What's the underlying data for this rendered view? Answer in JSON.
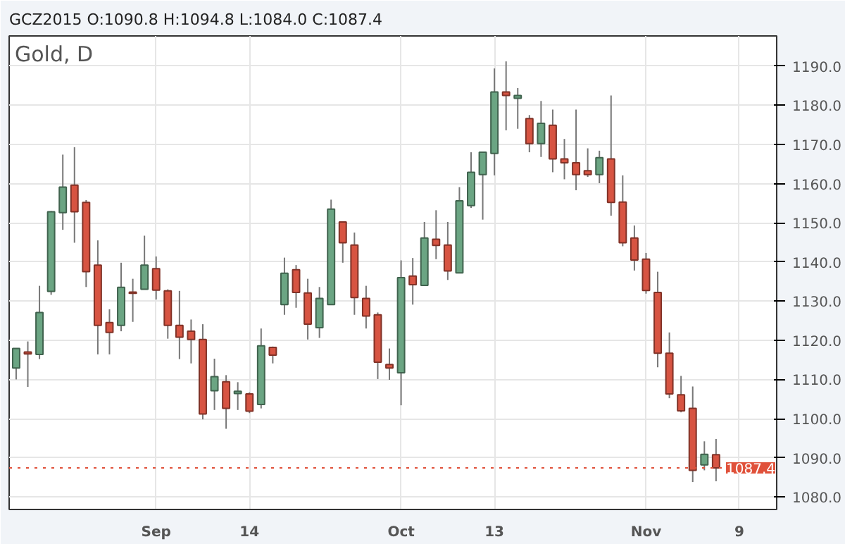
{
  "chart_data": {
    "type": "candlestick",
    "title": "GCZ2015 O:1090.8 H:1094.8 L:1084.0 C:1087.4",
    "subtitle": "Gold, D",
    "categories": [
      null,
      null,
      null,
      null,
      null,
      null,
      null,
      null,
      null,
      null,
      null,
      null,
      "Sep",
      null,
      null,
      null,
      null,
      null,
      null,
      null,
      "14",
      null,
      null,
      null,
      null,
      null,
      null,
      null,
      null,
      null,
      null,
      null,
      null,
      "Oct",
      null,
      null,
      null,
      null,
      null,
      null,
      null,
      "13",
      null,
      null,
      null,
      null,
      null,
      null,
      null,
      null,
      null,
      null,
      null,
      null,
      "Nov",
      null,
      null,
      null,
      null,
      null,
      null,
      null,
      "9",
      null,
      null
    ],
    "ohlc": [
      [
        1112.9,
        1117.9,
        1110,
        1117.9
      ],
      [
        1117,
        1119.7,
        1108.1,
        1116.5
      ],
      [
        1116.4,
        1133.9,
        1115.2,
        1127.1
      ],
      [
        1132.5,
        1153,
        1131.6,
        1152.8
      ],
      [
        1152.6,
        1167.4,
        1148.2,
        1159.1
      ],
      [
        1159.6,
        1169.3,
        1144.9,
        1152.8
      ],
      [
        1155.2,
        1155.8,
        1133.6,
        1137.5
      ],
      [
        1139.2,
        1145.5,
        1116.4,
        1123.8
      ],
      [
        1124.5,
        1127.9,
        1116.4,
        1122
      ],
      [
        1123.8,
        1139.8,
        1122.3,
        1133.5
      ],
      [
        1132.3,
        1135.7,
        1124.7,
        1132
      ],
      [
        1133,
        1146.7,
        1133,
        1139.2
      ],
      [
        1138.3,
        1141.4,
        1130.4,
        1132.8
      ],
      [
        1132.6,
        1133,
        1120.4,
        1123.8
      ],
      [
        1123.8,
        1132.6,
        1115.2,
        1120.8
      ],
      [
        1122.3,
        1125.3,
        1114.1,
        1120.2
      ],
      [
        1120.2,
        1124.1,
        1099.8,
        1101.2
      ],
      [
        1107.1,
        1115.3,
        1102.2,
        1110.7
      ],
      [
        1109.4,
        1111.1,
        1097.4,
        1102.6
      ],
      [
        1106.4,
        1109.3,
        1102.2,
        1107
      ],
      [
        1106.3,
        1106.7,
        1101.4,
        1101.9
      ],
      [
        1103.6,
        1123,
        1102.6,
        1118.6
      ],
      [
        1118.2,
        1118.4,
        1114.1,
        1116.2
      ],
      [
        1129.1,
        1141.1,
        1126.5,
        1137.1
      ],
      [
        1138,
        1139.2,
        1128.3,
        1132.2
      ],
      [
        1132.1,
        1135.7,
        1120.2,
        1124.1
      ],
      [
        1123.2,
        1133.6,
        1120.6,
        1130.7
      ],
      [
        1129.1,
        1155.9,
        1129.1,
        1153.5
      ],
      [
        1150.2,
        1150.2,
        1139.8,
        1144.9
      ],
      [
        1144.3,
        1147.5,
        1126.5,
        1130.9
      ],
      [
        1130.7,
        1133.9,
        1123,
        1126.2
      ],
      [
        1126.5,
        1127.1,
        1110.1,
        1114.4
      ],
      [
        1113.8,
        1117.9,
        1109.9,
        1112.9
      ],
      [
        1111.7,
        1140.4,
        1103.4,
        1136
      ],
      [
        1136.4,
        1141,
        1129.1,
        1134.2
      ],
      [
        1134,
        1150.2,
        1134,
        1146.1
      ],
      [
        1145.8,
        1153.2,
        1140.7,
        1144.2
      ],
      [
        1144.3,
        1150.2,
        1135.4,
        1137.7
      ],
      [
        1137.2,
        1159.1,
        1137.2,
        1155.6
      ],
      [
        1154.4,
        1168,
        1153.8,
        1162.9
      ],
      [
        1162.3,
        1168,
        1150.8,
        1168
      ],
      [
        1167.7,
        1189.4,
        1162.1,
        1183.4
      ],
      [
        1183.4,
        1191.2,
        1173.6,
        1182.5
      ],
      [
        1181.8,
        1184.4,
        1174,
        1182.5
      ],
      [
        1176.6,
        1177.5,
        1168,
        1170.2
      ],
      [
        1170.2,
        1181.1,
        1166.8,
        1175.4
      ],
      [
        1174.9,
        1178.9,
        1162.9,
        1166.3
      ],
      [
        1166.3,
        1171.4,
        1161.1,
        1165.3
      ],
      [
        1165.3,
        1178.9,
        1158.3,
        1162.3
      ],
      [
        1163.3,
        1169,
        1161.7,
        1162.3
      ],
      [
        1162.3,
        1168.4,
        1160.1,
        1166.6
      ],
      [
        1166.3,
        1182.5,
        1151.8,
        1155.2
      ],
      [
        1155.3,
        1162.1,
        1144,
        1144.9
      ],
      [
        1146.1,
        1149.3,
        1137.8,
        1140.5
      ],
      [
        1140.7,
        1142.3,
        1131.9,
        1132.7
      ],
      [
        1132.2,
        1137.5,
        1113.1,
        1116.7
      ],
      [
        1116.7,
        1122,
        1105.2,
        1106.3
      ],
      [
        1106.1,
        1110.9,
        1101.6,
        1102
      ],
      [
        1102.6,
        1108.2,
        1083.8,
        1086.8
      ],
      [
        1088.2,
        1094.2,
        1086.8,
        1090.9
      ],
      [
        1090.8,
        1094.8,
        1084,
        1087.4
      ],
      null,
      null,
      null,
      null
    ],
    "colors": [
      "#6ba583",
      "#d75442",
      "#6ba583",
      "#6ba583",
      "#6ba583",
      "#d75442",
      "#d75442",
      "#d75442",
      "#d75442",
      "#6ba583",
      "#d75442",
      "#6ba583",
      "#d75442",
      "#d75442",
      "#d75442",
      "#d75442",
      "#d75442",
      "#6ba583",
      "#d75442",
      "#6ba583",
      "#d75442",
      "#6ba583",
      "#d75442",
      "#6ba583",
      "#d75442",
      "#d75442",
      "#6ba583",
      "#6ba583",
      "#d75442",
      "#d75442",
      "#d75442",
      "#d75442",
      "#d75442",
      "#6ba583",
      "#d75442",
      "#6ba583",
      "#d75442",
      "#d75442",
      "#6ba583",
      "#6ba583",
      "#6ba583",
      "#6ba583",
      "#d75442",
      "#6ba583",
      "#d75442",
      "#6ba583",
      "#d75442",
      "#d75442",
      "#d75442",
      "#d75442",
      "#6ba583",
      "#d75442",
      "#d75442",
      "#d75442",
      "#d75442",
      "#d75442",
      "#d75442",
      "#d75442",
      "#d75442",
      "#6ba583",
      "#d75442",
      null,
      null,
      null,
      null
    ],
    "ylim": [
      1076.8,
      1197.7
    ],
    "yticks": [
      {
        "value": 1080,
        "label": "1080.0"
      },
      {
        "value": 1090,
        "label": "1090.0"
      },
      {
        "value": 1100,
        "label": "1100.0"
      },
      {
        "value": 1110,
        "label": "1110.0"
      },
      {
        "value": 1120,
        "label": "1120.0"
      },
      {
        "value": 1130,
        "label": "1130.0"
      },
      {
        "value": 1140,
        "label": "1140.0"
      },
      {
        "value": 1150,
        "label": "1150.0"
      },
      {
        "value": 1160,
        "label": "1160.0"
      },
      {
        "value": 1170,
        "label": "1170.0"
      },
      {
        "value": 1180,
        "label": "1180.0"
      },
      {
        "value": 1190,
        "label": "1190.0"
      }
    ],
    "ref_lines": [
      {
        "axis": "y",
        "value": 1087.4,
        "label": "1087.4",
        "color": "#e0513a",
        "line_style": "dotted"
      }
    ],
    "grid": true
  }
}
